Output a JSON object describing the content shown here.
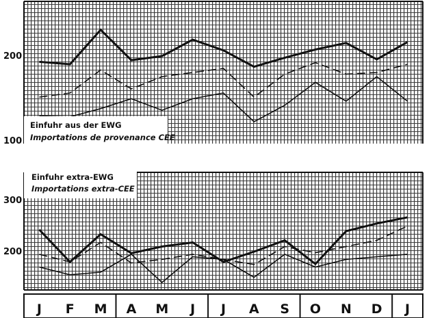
{
  "chart_data": [
    {
      "type": "line",
      "legend_lines": [
        "Einfuhr aus der EWG",
        "Importations de provenance CEE"
      ],
      "y_ticks": [
        200,
        100
      ],
      "categories": [
        "J",
        "F",
        "M",
        "A",
        "M",
        "J",
        "J",
        "A",
        "S",
        "O",
        "N",
        "D",
        "J"
      ],
      "ylim": [
        100,
        250
      ],
      "grid": true,
      "series": [
        {
          "style": "solid-thick",
          "values": [
            193,
            190,
            232,
            195,
            200,
            220,
            207,
            187,
            198,
            208,
            216,
            196,
            217
          ]
        },
        {
          "style": "dashed",
          "values": [
            150,
            155,
            183,
            160,
            175,
            180,
            185,
            150,
            178,
            192,
            178,
            180,
            190
          ]
        },
        {
          "style": "solid-thin",
          "values": [
            127,
            126,
            136,
            148,
            134,
            148,
            155,
            120,
            140,
            168,
            145,
            175,
            145
          ]
        }
      ]
    },
    {
      "type": "line",
      "legend_lines": [
        "Einfuhr extra-EWG",
        "Importations extra-CEE"
      ],
      "y_ticks": [
        300,
        200
      ],
      "categories": [
        "J",
        "F",
        "M",
        "A",
        "M",
        "J",
        "J",
        "A",
        "S",
        "O",
        "N",
        "D",
        "J"
      ],
      "ylim": [
        120,
        300
      ],
      "grid": true,
      "series": [
        {
          "style": "solid-thick",
          "values": [
            243,
            180,
            234,
            197,
            210,
            218,
            180,
            200,
            222,
            176,
            240,
            255,
            267
          ]
        },
        {
          "style": "dashed",
          "values": [
            195,
            180,
            218,
            178,
            185,
            195,
            185,
            175,
            210,
            198,
            210,
            222,
            250
          ]
        },
        {
          "style": "solid-thin",
          "values": [
            170,
            155,
            160,
            195,
            140,
            190,
            185,
            150,
            195,
            170,
            185,
            190,
            195
          ]
        }
      ]
    }
  ],
  "month_axis": {
    "labels": [
      "J",
      "F",
      "M",
      "A",
      "M",
      "J",
      "J",
      "A",
      "S",
      "O",
      "N",
      "D",
      "J"
    ],
    "group_dividers_after": [
      2,
      5,
      8,
      11
    ]
  }
}
